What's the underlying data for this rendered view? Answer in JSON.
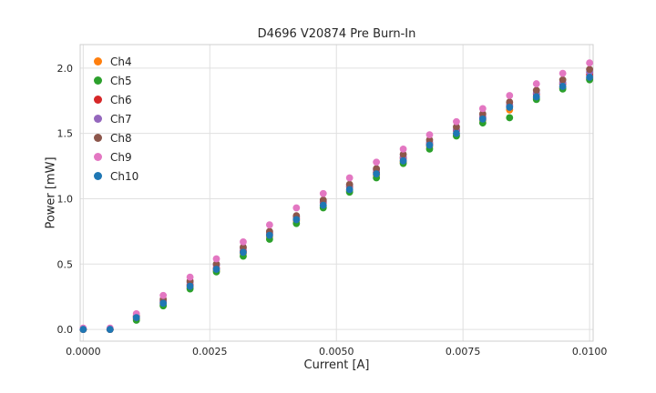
{
  "chart_data": {
    "type": "scatter",
    "title": "D4696 V20874 Pre Burn-In",
    "xlabel": "Current [A]",
    "ylabel": "Power [mW]",
    "xlim": [
      -6e-05,
      0.01007
    ],
    "ylim": [
      -0.09,
      2.18
    ],
    "grid": true,
    "legend_position": "upper left",
    "xticks": [
      {
        "v": 0.0,
        "label": "0.0000"
      },
      {
        "v": 0.0025,
        "label": "0.0025"
      },
      {
        "v": 0.005,
        "label": "0.0050"
      },
      {
        "v": 0.0075,
        "label": "0.0075"
      },
      {
        "v": 0.01,
        "label": "0.0100"
      }
    ],
    "yticks": [
      {
        "v": 0.0,
        "label": "0.0"
      },
      {
        "v": 0.5,
        "label": "0.5"
      },
      {
        "v": 1.0,
        "label": "1.0"
      },
      {
        "v": 1.5,
        "label": "1.5"
      },
      {
        "v": 2.0,
        "label": "2.0"
      }
    ],
    "x": [
      0.0,
      0.00053,
      0.00105,
      0.00158,
      0.00211,
      0.00263,
      0.00316,
      0.00368,
      0.00421,
      0.00474,
      0.00526,
      0.00579,
      0.00632,
      0.00684,
      0.00737,
      0.00789,
      0.00842,
      0.00895,
      0.00947,
      0.01
    ],
    "series": [
      {
        "name": "Ch4",
        "color": "#ff7f0e",
        "values": [
          0.0,
          0.0,
          0.08,
          0.19,
          0.32,
          0.45,
          0.58,
          0.71,
          0.83,
          0.94,
          1.06,
          1.18,
          1.28,
          1.4,
          1.49,
          1.6,
          1.68,
          1.77,
          1.85,
          1.92
        ]
      },
      {
        "name": "Ch5",
        "color": "#2ca02c",
        "values": [
          0.0,
          0.0,
          0.07,
          0.18,
          0.31,
          0.44,
          0.56,
          0.69,
          0.81,
          0.93,
          1.05,
          1.16,
          1.27,
          1.38,
          1.48,
          1.58,
          1.62,
          1.76,
          1.84,
          1.91
        ]
      },
      {
        "name": "Ch6",
        "color": "#d62728",
        "values": [
          0.0,
          0.0,
          0.09,
          0.21,
          0.34,
          0.47,
          0.6,
          0.73,
          0.85,
          0.97,
          1.09,
          1.2,
          1.31,
          1.42,
          1.52,
          1.62,
          1.71,
          1.8,
          1.88,
          1.95
        ]
      },
      {
        "name": "Ch7",
        "color": "#9467bd",
        "values": [
          0.0,
          0.0,
          0.1,
          0.22,
          0.36,
          0.49,
          0.62,
          0.74,
          0.86,
          0.98,
          1.1,
          1.22,
          1.32,
          1.43,
          1.53,
          1.63,
          1.72,
          1.81,
          1.89,
          1.97
        ]
      },
      {
        "name": "Ch8",
        "color": "#8c564b",
        "values": [
          0.0,
          0.0,
          0.1,
          0.23,
          0.37,
          0.5,
          0.63,
          0.75,
          0.87,
          0.99,
          1.11,
          1.23,
          1.34,
          1.45,
          1.55,
          1.65,
          1.74,
          1.83,
          1.91,
          1.99
        ]
      },
      {
        "name": "Ch9",
        "color": "#e377c2",
        "values": [
          0.01,
          0.01,
          0.12,
          0.26,
          0.4,
          0.54,
          0.67,
          0.8,
          0.93,
          1.04,
          1.16,
          1.28,
          1.38,
          1.49,
          1.59,
          1.69,
          1.79,
          1.88,
          1.96,
          2.04
        ]
      },
      {
        "name": "Ch10",
        "color": "#1f77b4",
        "values": [
          0.0,
          0.0,
          0.09,
          0.2,
          0.33,
          0.46,
          0.59,
          0.72,
          0.84,
          0.95,
          1.07,
          1.19,
          1.29,
          1.41,
          1.5,
          1.61,
          1.7,
          1.78,
          1.86,
          1.93
        ]
      }
    ],
    "marker": {
      "size": 3.9
    }
  },
  "colors": {
    "grid": "#e0e0e0",
    "spine": "#cfcfcf",
    "text": "#262626",
    "background": "#ffffff"
  }
}
